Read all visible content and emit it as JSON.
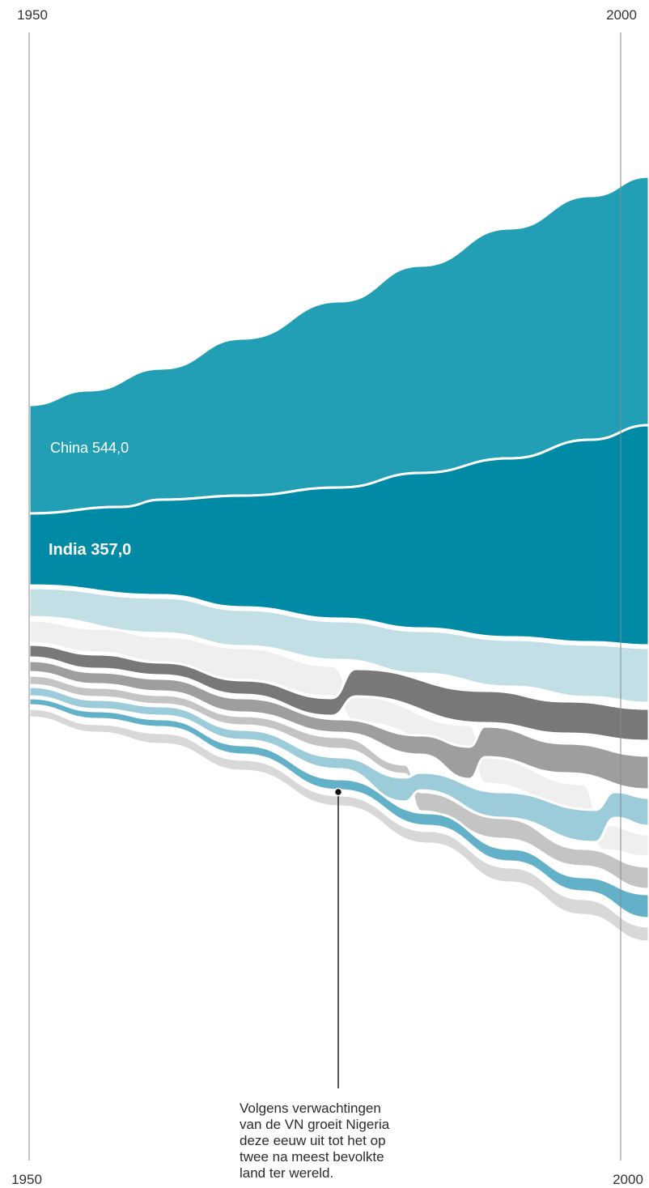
{
  "chart_data": {
    "type": "area",
    "title": "",
    "x_range": [
      1950,
      2000
    ],
    "tick_labels": [
      "1950",
      "2000"
    ],
    "series": [
      {
        "name": "China",
        "value_label": "544,0",
        "color": "#229fb5"
      },
      {
        "name": "India",
        "value_label": "357,0",
        "color": "#008aa6"
      }
    ],
    "unnamed_bands_colors": [
      "#c2dfe6",
      "#efefef",
      "#787878",
      "#9e9e9e",
      "#c4c4c4",
      "#9ccbd9",
      "#62b1c9",
      "#d8d8d8"
    ],
    "annotation": {
      "text_lines": [
        "Volgens verwachtingen",
        "van de VN groeit Nigeria",
        "deze eeuw uit tot het op",
        "twee na meest bevolkte",
        "land ter wereld."
      ]
    }
  }
}
